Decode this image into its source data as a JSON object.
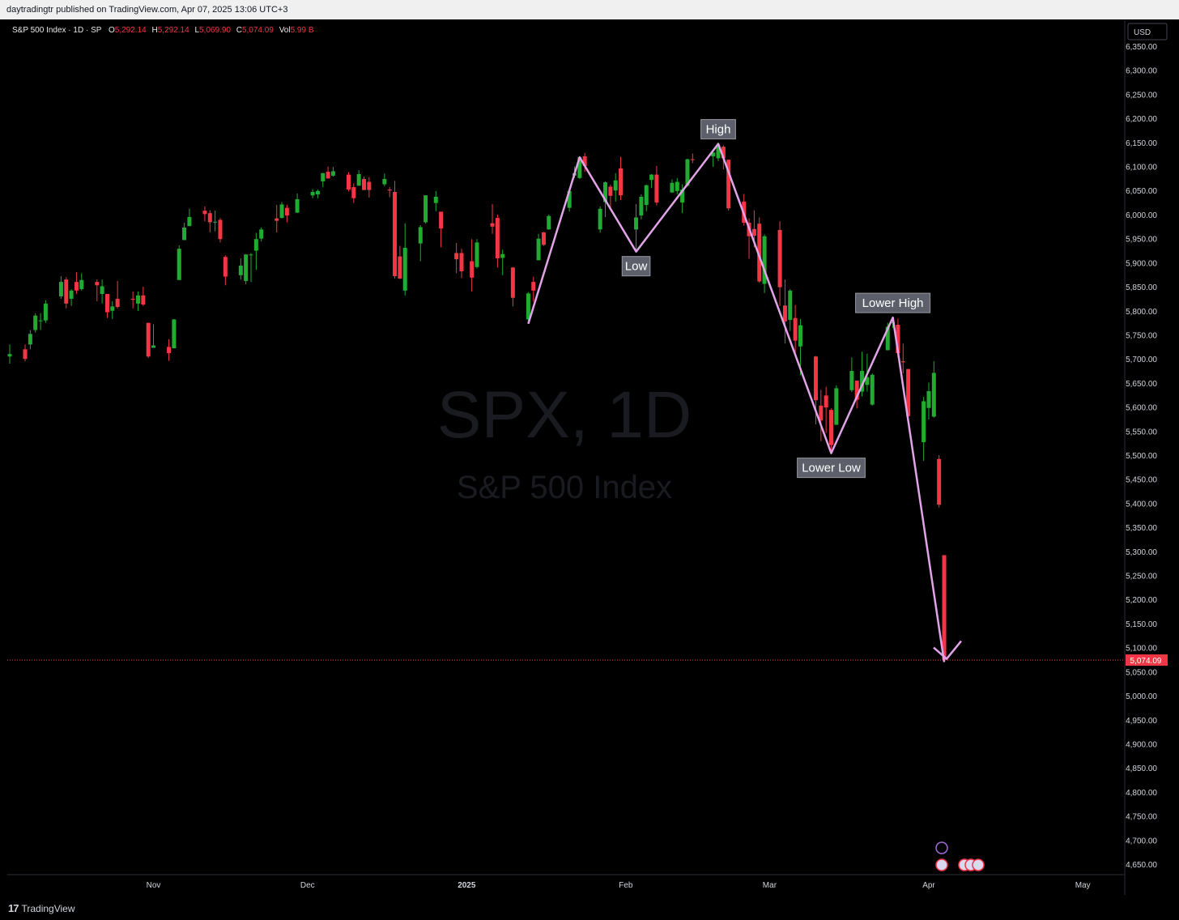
{
  "header": {
    "published": "daytradingtr published on TradingView.com, Apr 07, 2025 13:06 UTC+3"
  },
  "legend": {
    "symbol": "S&P 500 Index · 1D · SP",
    "o_label": "O",
    "o": "5,292.14",
    "h_label": "H",
    "h": "5,292.14",
    "l_label": "L",
    "l": "5,069.90",
    "c_label": "C",
    "c": "5,074.09",
    "vol_label": "Vol",
    "vol": "5.99 B"
  },
  "watermark": {
    "ticker": "SPX, 1D",
    "name": "S&P 500 Index"
  },
  "currency": "USD",
  "last_price_label": "5,074.09",
  "footer": {
    "brand": "TradingView",
    "logo": "tv-logo-icon"
  },
  "colors": {
    "up": "#22ab32",
    "down": "#f23645",
    "drawing": "#e2a3e8",
    "label_bg": "#5d606b"
  },
  "chart_data": {
    "type": "candlestick",
    "ylim": [
      4625,
      6375
    ],
    "y_ticks": [
      6350,
      6300,
      6250,
      6200,
      6150,
      6100,
      6050,
      6000,
      5950,
      5900,
      5850,
      5800,
      5750,
      5700,
      5650,
      5600,
      5550,
      5500,
      5450,
      5400,
      5350,
      5300,
      5250,
      5200,
      5150,
      5100,
      5050,
      5000,
      4950,
      4900,
      4850,
      4800,
      4750,
      4700,
      4650
    ],
    "y_tick_labels": [
      "6,350.00",
      "6,300.00",
      "6,250.00",
      "6,200.00",
      "6,150.00",
      "6,100.00",
      "6,050.00",
      "6,000.00",
      "5,950.00",
      "5,900.00",
      "5,850.00",
      "5,800.00",
      "5,750.00",
      "5,700.00",
      "5,650.00",
      "5,600.00",
      "5,550.00",
      "5,500.00",
      "5,450.00",
      "5,400.00",
      "5,350.00",
      "5,300.00",
      "5,250.00",
      "5,200.00",
      "5,150.00",
      "5,100.00",
      "5,050.00",
      "5,000.00",
      "4,950.00",
      "4,900.00",
      "4,850.00",
      "4,800.00",
      "4,750.00",
      "4,700.00",
      "4,650.00"
    ],
    "x_ticks": [
      {
        "label": "Nov",
        "date": "2024-11-01"
      },
      {
        "label": "Dec",
        "date": "2024-12-01"
      },
      {
        "label": "2025",
        "date": "2025-01-01"
      },
      {
        "label": "Feb",
        "date": "2025-02-01"
      },
      {
        "label": "Mar",
        "date": "2025-03-01"
      },
      {
        "label": "Apr",
        "date": "2025-04-01"
      },
      {
        "label": "May",
        "date": "2025-05-01"
      }
    ],
    "last_price": 5074.09,
    "candles": [
      {
        "d": "2024-10-04",
        "o": 5705,
        "h": 5730,
        "l": 5690,
        "c": 5710
      },
      {
        "d": "2024-10-07",
        "o": 5720,
        "h": 5730,
        "l": 5695,
        "c": 5700
      },
      {
        "d": "2024-10-08",
        "o": 5730,
        "h": 5760,
        "l": 5720,
        "c": 5752
      },
      {
        "d": "2024-10-09",
        "o": 5760,
        "h": 5795,
        "l": 5755,
        "c": 5790
      },
      {
        "d": "2024-10-10",
        "o": 5780,
        "h": 5795,
        "l": 5760,
        "c": 5780
      },
      {
        "d": "2024-10-11",
        "o": 5780,
        "h": 5822,
        "l": 5775,
        "c": 5815
      },
      {
        "d": "2024-10-14",
        "o": 5830,
        "h": 5872,
        "l": 5825,
        "c": 5860
      },
      {
        "d": "2024-10-15",
        "o": 5865,
        "h": 5870,
        "l": 5805,
        "c": 5815
      },
      {
        "d": "2024-10-16",
        "o": 5825,
        "h": 5845,
        "l": 5810,
        "c": 5842
      },
      {
        "d": "2024-10-17",
        "o": 5860,
        "h": 5880,
        "l": 5835,
        "c": 5842
      },
      {
        "d": "2024-10-18",
        "o": 5845,
        "h": 5878,
        "l": 5842,
        "c": 5864
      },
      {
        "d": "2024-10-21",
        "o": 5860,
        "h": 5865,
        "l": 5820,
        "c": 5853
      },
      {
        "d": "2024-10-22",
        "o": 5835,
        "h": 5865,
        "l": 5815,
        "c": 5851
      },
      {
        "d": "2024-10-23",
        "o": 5835,
        "h": 5835,
        "l": 5785,
        "c": 5797
      },
      {
        "d": "2024-10-24",
        "o": 5800,
        "h": 5820,
        "l": 5783,
        "c": 5809
      },
      {
        "d": "2024-10-25",
        "o": 5825,
        "h": 5862,
        "l": 5805,
        "c": 5808
      },
      {
        "d": "2024-10-28",
        "o": 5825,
        "h": 5840,
        "l": 5805,
        "c": 5823
      },
      {
        "d": "2024-10-29",
        "o": 5815,
        "h": 5840,
        "l": 5800,
        "c": 5832
      },
      {
        "d": "2024-10-30",
        "o": 5832,
        "h": 5850,
        "l": 5810,
        "c": 5813
      },
      {
        "d": "2024-10-31",
        "o": 5775,
        "h": 5775,
        "l": 5702,
        "c": 5705
      },
      {
        "d": "2024-11-01",
        "o": 5723,
        "h": 5772,
        "l": 5723,
        "c": 5728
      },
      {
        "d": "2024-11-04",
        "o": 5725,
        "h": 5741,
        "l": 5696,
        "c": 5712
      },
      {
        "d": "2024-11-05",
        "o": 5722,
        "h": 5783,
        "l": 5722,
        "c": 5782
      },
      {
        "d": "2024-11-06",
        "o": 5864,
        "h": 5936,
        "l": 5864,
        "c": 5929
      },
      {
        "d": "2024-11-07",
        "o": 5947,
        "h": 5983,
        "l": 5947,
        "c": 5973
      },
      {
        "d": "2024-11-08",
        "o": 5976,
        "h": 6012,
        "l": 5976,
        "c": 5995
      },
      {
        "d": "2024-11-11",
        "o": 6008,
        "h": 6017,
        "l": 5986,
        "c": 6001
      },
      {
        "d": "2024-11-12",
        "o": 6003,
        "h": 6009,
        "l": 5963,
        "c": 5984
      },
      {
        "d": "2024-11-13",
        "o": 5985,
        "h": 6008,
        "l": 5965,
        "c": 5985
      },
      {
        "d": "2024-11-14",
        "o": 5989,
        "h": 5993,
        "l": 5942,
        "c": 5949
      },
      {
        "d": "2024-11-15",
        "o": 5912,
        "h": 5915,
        "l": 5853,
        "c": 5871
      },
      {
        "d": "2024-11-18",
        "o": 5874,
        "h": 5909,
        "l": 5865,
        "c": 5894
      },
      {
        "d": "2024-11-19",
        "o": 5862,
        "h": 5918,
        "l": 5855,
        "c": 5917
      },
      {
        "d": "2024-11-20",
        "o": 5917,
        "h": 5920,
        "l": 5860,
        "c": 5917
      },
      {
        "d": "2024-11-21",
        "o": 5925,
        "h": 5962,
        "l": 5885,
        "c": 5949
      },
      {
        "d": "2024-11-22",
        "o": 5950,
        "h": 5973,
        "l": 5944,
        "c": 5969
      },
      {
        "d": "2024-11-25",
        "o": 5992,
        "h": 6020,
        "l": 5963,
        "c": 5987
      },
      {
        "d": "2024-11-26",
        "o": 5993,
        "h": 6026,
        "l": 5992,
        "c": 6021
      },
      {
        "d": "2024-11-27",
        "o": 6014,
        "h": 6020,
        "l": 5984,
        "c": 5998
      },
      {
        "d": "2024-11-29",
        "o": 6004,
        "h": 6044,
        "l": 6003,
        "c": 6032
      },
      {
        "d": "2024-12-02",
        "o": 6040,
        "h": 6053,
        "l": 6034,
        "c": 6047
      },
      {
        "d": "2024-12-03",
        "o": 6042,
        "h": 6052,
        "l": 6034,
        "c": 6049
      },
      {
        "d": "2024-12-04",
        "o": 6069,
        "h": 6087,
        "l": 6057,
        "c": 6086
      },
      {
        "d": "2024-12-05",
        "o": 6089,
        "h": 6100,
        "l": 6075,
        "c": 6075
      },
      {
        "d": "2024-12-06",
        "o": 6081,
        "h": 6099,
        "l": 6079,
        "c": 6090
      },
      {
        "d": "2024-12-09",
        "o": 6083,
        "h": 6088,
        "l": 6048,
        "c": 6052
      },
      {
        "d": "2024-12-10",
        "o": 6057,
        "h": 6065,
        "l": 6024,
        "c": 6034
      },
      {
        "d": "2024-12-11",
        "o": 6060,
        "h": 6092,
        "l": 6060,
        "c": 6084
      },
      {
        "d": "2024-12-12",
        "o": 6074,
        "h": 6079,
        "l": 6051,
        "c": 6051
      },
      {
        "d": "2024-12-13",
        "o": 6068,
        "h": 6078,
        "l": 6035,
        "c": 6051
      },
      {
        "d": "2024-12-16",
        "o": 6063,
        "h": 6085,
        "l": 6059,
        "c": 6074
      },
      {
        "d": "2024-12-17",
        "o": 6052,
        "h": 6057,
        "l": 6036,
        "c": 6050
      },
      {
        "d": "2024-12-18",
        "o": 6047,
        "h": 6070,
        "l": 5867,
        "c": 5872
      },
      {
        "d": "2024-12-19",
        "o": 5913,
        "h": 5935,
        "l": 5866,
        "c": 5867
      },
      {
        "d": "2024-12-20",
        "o": 5842,
        "h": 5982,
        "l": 5832,
        "c": 5931
      },
      {
        "d": "2024-12-23",
        "o": 5940,
        "h": 5978,
        "l": 5903,
        "c": 5974
      },
      {
        "d": "2024-12-24",
        "o": 5984,
        "h": 6040,
        "l": 5981,
        "c": 6040
      },
      {
        "d": "2024-12-26",
        "o": 6024,
        "h": 6049,
        "l": 6007,
        "c": 6037
      },
      {
        "d": "2024-12-27",
        "o": 6006,
        "h": 6006,
        "l": 5932,
        "c": 5971
      },
      {
        "d": "2024-12-30",
        "o": 5920,
        "h": 5941,
        "l": 5878,
        "c": 5907
      },
      {
        "d": "2024-12-31",
        "o": 5920,
        "h": 5929,
        "l": 5868,
        "c": 5882
      },
      {
        "d": "2025-01-02",
        "o": 5903,
        "h": 5949,
        "l": 5840,
        "c": 5869
      },
      {
        "d": "2025-01-03",
        "o": 5891,
        "h": 5949,
        "l": 5888,
        "c": 5942
      },
      {
        "d": "2025-01-06",
        "o": 5982,
        "h": 6022,
        "l": 5960,
        "c": 5975
      },
      {
        "d": "2025-01-07",
        "o": 5993,
        "h": 6000,
        "l": 5890,
        "c": 5909
      },
      {
        "d": "2025-01-08",
        "o": 5910,
        "h": 5927,
        "l": 5874,
        "c": 5918
      },
      {
        "d": "2025-01-10",
        "o": 5890,
        "h": 5891,
        "l": 5809,
        "c": 5827
      },
      {
        "d": "2025-01-13",
        "o": 5782,
        "h": 5839,
        "l": 5773,
        "c": 5836
      },
      {
        "d": "2025-01-14",
        "o": 5860,
        "h": 5871,
        "l": 5819,
        "c": 5842
      },
      {
        "d": "2025-01-15",
        "o": 5905,
        "h": 5960,
        "l": 5905,
        "c": 5950
      },
      {
        "d": "2025-01-16",
        "o": 5963,
        "h": 5964,
        "l": 5935,
        "c": 5937
      },
      {
        "d": "2025-01-17",
        "o": 5969,
        "h": 6000,
        "l": 5969,
        "c": 5997
      },
      {
        "d": "2025-01-21",
        "o": 6014,
        "h": 6051,
        "l": 6006,
        "c": 6049
      },
      {
        "d": "2025-01-22",
        "o": 6081,
        "h": 6100,
        "l": 6076,
        "c": 6086
      },
      {
        "d": "2025-01-23",
        "o": 6076,
        "h": 6118,
        "l": 6074,
        "c": 6119
      },
      {
        "d": "2025-01-24",
        "o": 6121,
        "h": 6128,
        "l": 6089,
        "c": 6101
      },
      {
        "d": "2025-01-27",
        "o": 5969,
        "h": 6017,
        "l": 5962,
        "c": 6012
      },
      {
        "d": "2025-01-28",
        "o": 6026,
        "h": 6069,
        "l": 5995,
        "c": 6067
      },
      {
        "d": "2025-01-29",
        "o": 6058,
        "h": 6062,
        "l": 6014,
        "c": 6039
      },
      {
        "d": "2025-01-30",
        "o": 6050,
        "h": 6086,
        "l": 6027,
        "c": 6071
      },
      {
        "d": "2025-01-31",
        "o": 6096,
        "h": 6120,
        "l": 6030,
        "c": 6040
      },
      {
        "d": "2025-02-03",
        "o": 5969,
        "h": 6022,
        "l": 5923,
        "c": 5994
      },
      {
        "d": "2025-02-04",
        "o": 5998,
        "h": 6042,
        "l": 5990,
        "c": 6037
      },
      {
        "d": "2025-02-05",
        "o": 6020,
        "h": 6062,
        "l": 6007,
        "c": 6061
      },
      {
        "d": "2025-02-06",
        "o": 6072,
        "h": 6084,
        "l": 6055,
        "c": 6083
      },
      {
        "d": "2025-02-07",
        "o": 6083,
        "h": 6101,
        "l": 6019,
        "c": 6025
      },
      {
        "d": "2025-02-10",
        "o": 6046,
        "h": 6073,
        "l": 6045,
        "c": 6066
      },
      {
        "d": "2025-02-11",
        "o": 6049,
        "h": 6076,
        "l": 6042,
        "c": 6068
      },
      {
        "d": "2025-02-12",
        "o": 6025,
        "h": 6063,
        "l": 6003,
        "c": 6052
      },
      {
        "d": "2025-02-13",
        "o": 6060,
        "h": 6116,
        "l": 6058,
        "c": 6115
      },
      {
        "d": "2025-02-14",
        "o": 6115,
        "h": 6127,
        "l": 6107,
        "c": 6114
      },
      {
        "d": "2025-02-18",
        "o": 6121,
        "h": 6129,
        "l": 6099,
        "c": 6129
      },
      {
        "d": "2025-02-19",
        "o": 6117,
        "h": 6147,
        "l": 6111,
        "c": 6144
      },
      {
        "d": "2025-02-20",
        "o": 6141,
        "h": 6144,
        "l": 6094,
        "c": 6117
      },
      {
        "d": "2025-02-21",
        "o": 6114,
        "h": 6114,
        "l": 6008,
        "c": 6013
      },
      {
        "d": "2025-02-24",
        "o": 6027,
        "h": 6043,
        "l": 5977,
        "c": 5983
      },
      {
        "d": "2025-02-25",
        "o": 5983,
        "h": 5992,
        "l": 5908,
        "c": 5955
      },
      {
        "d": "2025-02-26",
        "o": 5970,
        "h": 6009,
        "l": 5932,
        "c": 5956
      },
      {
        "d": "2025-02-27",
        "o": 5981,
        "h": 5994,
        "l": 5858,
        "c": 5861
      },
      {
        "d": "2025-02-28",
        "o": 5856,
        "h": 5959,
        "l": 5837,
        "c": 5955
      },
      {
        "d": "2025-03-03",
        "o": 5968,
        "h": 5986,
        "l": 5810,
        "c": 5849
      },
      {
        "d": "2025-03-04",
        "o": 5811,
        "h": 5865,
        "l": 5732,
        "c": 5778
      },
      {
        "d": "2025-03-05",
        "o": 5781,
        "h": 5845,
        "l": 5758,
        "c": 5842
      },
      {
        "d": "2025-03-06",
        "o": 5785,
        "h": 5812,
        "l": 5711,
        "c": 5738
      },
      {
        "d": "2025-03-07",
        "o": 5726,
        "h": 5783,
        "l": 5666,
        "c": 5770
      },
      {
        "d": "2025-03-10",
        "o": 5705,
        "h": 5706,
        "l": 5564,
        "c": 5614
      },
      {
        "d": "2025-03-11",
        "o": 5603,
        "h": 5636,
        "l": 5529,
        "c": 5572
      },
      {
        "d": "2025-03-12",
        "o": 5624,
        "h": 5642,
        "l": 5546,
        "c": 5599
      },
      {
        "d": "2025-03-13",
        "o": 5594,
        "h": 5597,
        "l": 5504,
        "c": 5521
      },
      {
        "d": "2025-03-14",
        "o": 5563,
        "h": 5645,
        "l": 5563,
        "c": 5639
      },
      {
        "d": "2025-03-17",
        "o": 5635,
        "h": 5703,
        "l": 5631,
        "c": 5675
      },
      {
        "d": "2025-03-18",
        "o": 5655,
        "h": 5655,
        "l": 5597,
        "c": 5615
      },
      {
        "d": "2025-03-19",
        "o": 5632,
        "h": 5715,
        "l": 5622,
        "c": 5675
      },
      {
        "d": "2025-03-20",
        "o": 5646,
        "h": 5711,
        "l": 5632,
        "c": 5662
      },
      {
        "d": "2025-03-21",
        "o": 5605,
        "h": 5670,
        "l": 5603,
        "c": 5667
      },
      {
        "d": "2025-03-24",
        "o": 5718,
        "h": 5775,
        "l": 5718,
        "c": 5767
      },
      {
        "d": "2025-03-25",
        "o": 5775,
        "h": 5786,
        "l": 5764,
        "c": 5776
      },
      {
        "d": "2025-03-26",
        "o": 5771,
        "h": 5784,
        "l": 5703,
        "c": 5712
      },
      {
        "d": "2025-03-27",
        "o": 5695,
        "h": 5732,
        "l": 5670,
        "c": 5693
      },
      {
        "d": "2025-03-28",
        "o": 5679,
        "h": 5679,
        "l": 5572,
        "c": 5581
      },
      {
        "d": "2025-03-31",
        "o": 5527,
        "h": 5621,
        "l": 5488,
        "c": 5612
      },
      {
        "d": "2025-04-01",
        "o": 5598,
        "h": 5651,
        "l": 5574,
        "c": 5633
      },
      {
        "d": "2025-04-02",
        "o": 5580,
        "h": 5695,
        "l": 5578,
        "c": 5671
      },
      {
        "d": "2025-04-03",
        "o": 5492,
        "h": 5500,
        "l": 5391,
        "c": 5397
      },
      {
        "d": "2025-04-04",
        "o": 5292.14,
        "h": 5292.14,
        "l": 5069.9,
        "c": 5074.09
      }
    ],
    "pattern_line": [
      {
        "d": "2025-01-13",
        "v": 5773
      },
      {
        "d": "2025-01-23",
        "v": 6119
      },
      {
        "d": "2025-02-03",
        "v": 5923
      },
      {
        "d": "2025-02-19",
        "v": 6147
      },
      {
        "d": "2025-03-13",
        "v": 5504
      },
      {
        "d": "2025-03-25",
        "v": 5786
      },
      {
        "d": "2025-04-04",
        "v": 5069.9
      }
    ],
    "annotations": [
      {
        "text": "High",
        "d": "2025-02-19",
        "v": 6147,
        "position": "above"
      },
      {
        "text": "Low",
        "d": "2025-02-03",
        "v": 5923,
        "position": "below"
      },
      {
        "text": "Lower High",
        "d": "2025-03-25",
        "v": 5786,
        "position": "above"
      },
      {
        "text": "Lower Low",
        "d": "2025-03-13",
        "v": 5504,
        "position": "below"
      }
    ]
  }
}
